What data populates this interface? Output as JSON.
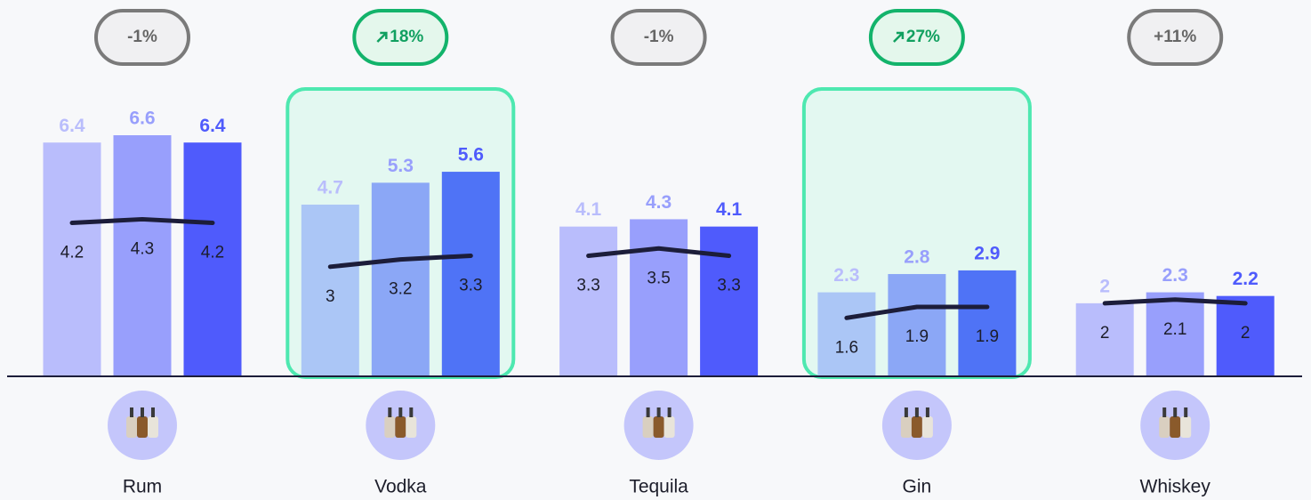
{
  "chart_data": {
    "type": "bar",
    "categories": [
      "Rum",
      "Vodka",
      "Tequila",
      "Gin",
      "Whiskey"
    ],
    "series": [
      {
        "color": "#b9bdfc",
        "highlight_color": "#abc6f6",
        "label_color": "#b9bdfc",
        "values": [
          6.4,
          4.7,
          4.1,
          2.3,
          2.0
        ]
      },
      {
        "color": "#989ffc",
        "highlight_color": "#8ba7f6",
        "label_color": "#989ffc",
        "values": [
          6.6,
          5.3,
          4.3,
          2.8,
          2.3
        ]
      },
      {
        "color": "#4f5bfc",
        "highlight_color": "#4f73f6",
        "label_color": "#4f5bfc",
        "values": [
          6.4,
          5.6,
          4.1,
          2.9,
          2.2
        ]
      }
    ],
    "line": {
      "color": "#1c1d3a",
      "values": [
        [
          4.2,
          4.3,
          4.2
        ],
        [
          3.0,
          3.2,
          3.3
        ],
        [
          3.3,
          3.5,
          3.3
        ],
        [
          1.6,
          1.9,
          1.9
        ],
        [
          2.0,
          2.1,
          2.0
        ]
      ]
    },
    "badges": [
      "-1%",
      "18%",
      "-1%",
      "27%",
      "+11%"
    ],
    "highlight": [
      false,
      true,
      false,
      true,
      false
    ]
  }
}
